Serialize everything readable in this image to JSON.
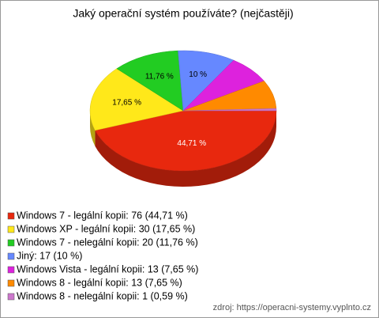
{
  "chart_data": {
    "type": "pie",
    "title": "Jaký operační systém používáte? (nejčastěji)",
    "categories": [
      "Windows 7 - legální kopii",
      "Windows XP - legální kopii",
      "Windows 7 - nelegální kopii",
      "Jiný",
      "Windows Vista - legální kopii",
      "Windows 8 - legální kopii",
      "Windows 8 - nelegální kopii"
    ],
    "values": [
      44.71,
      17.65,
      11.76,
      10,
      7.65,
      7.65,
      0.59
    ],
    "value_labels": [
      "44,71 %",
      "17,65 %",
      "11,76 %",
      "10 %",
      null,
      null,
      null
    ],
    "legend_labels": [
      "Windows 7 - legální kopii: 76 (44,71 %)",
      "Windows XP - legální kopii: 30 (17,65 %)",
      "Windows 7 - nelegální kopii: 20 (11,76 %)",
      "Jiný: 17 (10 %)",
      "Windows Vista - legální kopii: 13 (7,65 %)",
      "Windows 8 - legální kopii: 13 (7,65 %)",
      "Windows 8 - nelegální kopii: 1 (0,59 %)"
    ],
    "colors": [
      "#e8280e",
      "#ffe81a",
      "#22cc22",
      "#6688ff",
      "#dd22dd",
      "#ff8a00",
      "#cc77cc"
    ],
    "legend": "bottom-left",
    "source": "zdroj: https://operacni-systemy.vyplnto.cz"
  }
}
